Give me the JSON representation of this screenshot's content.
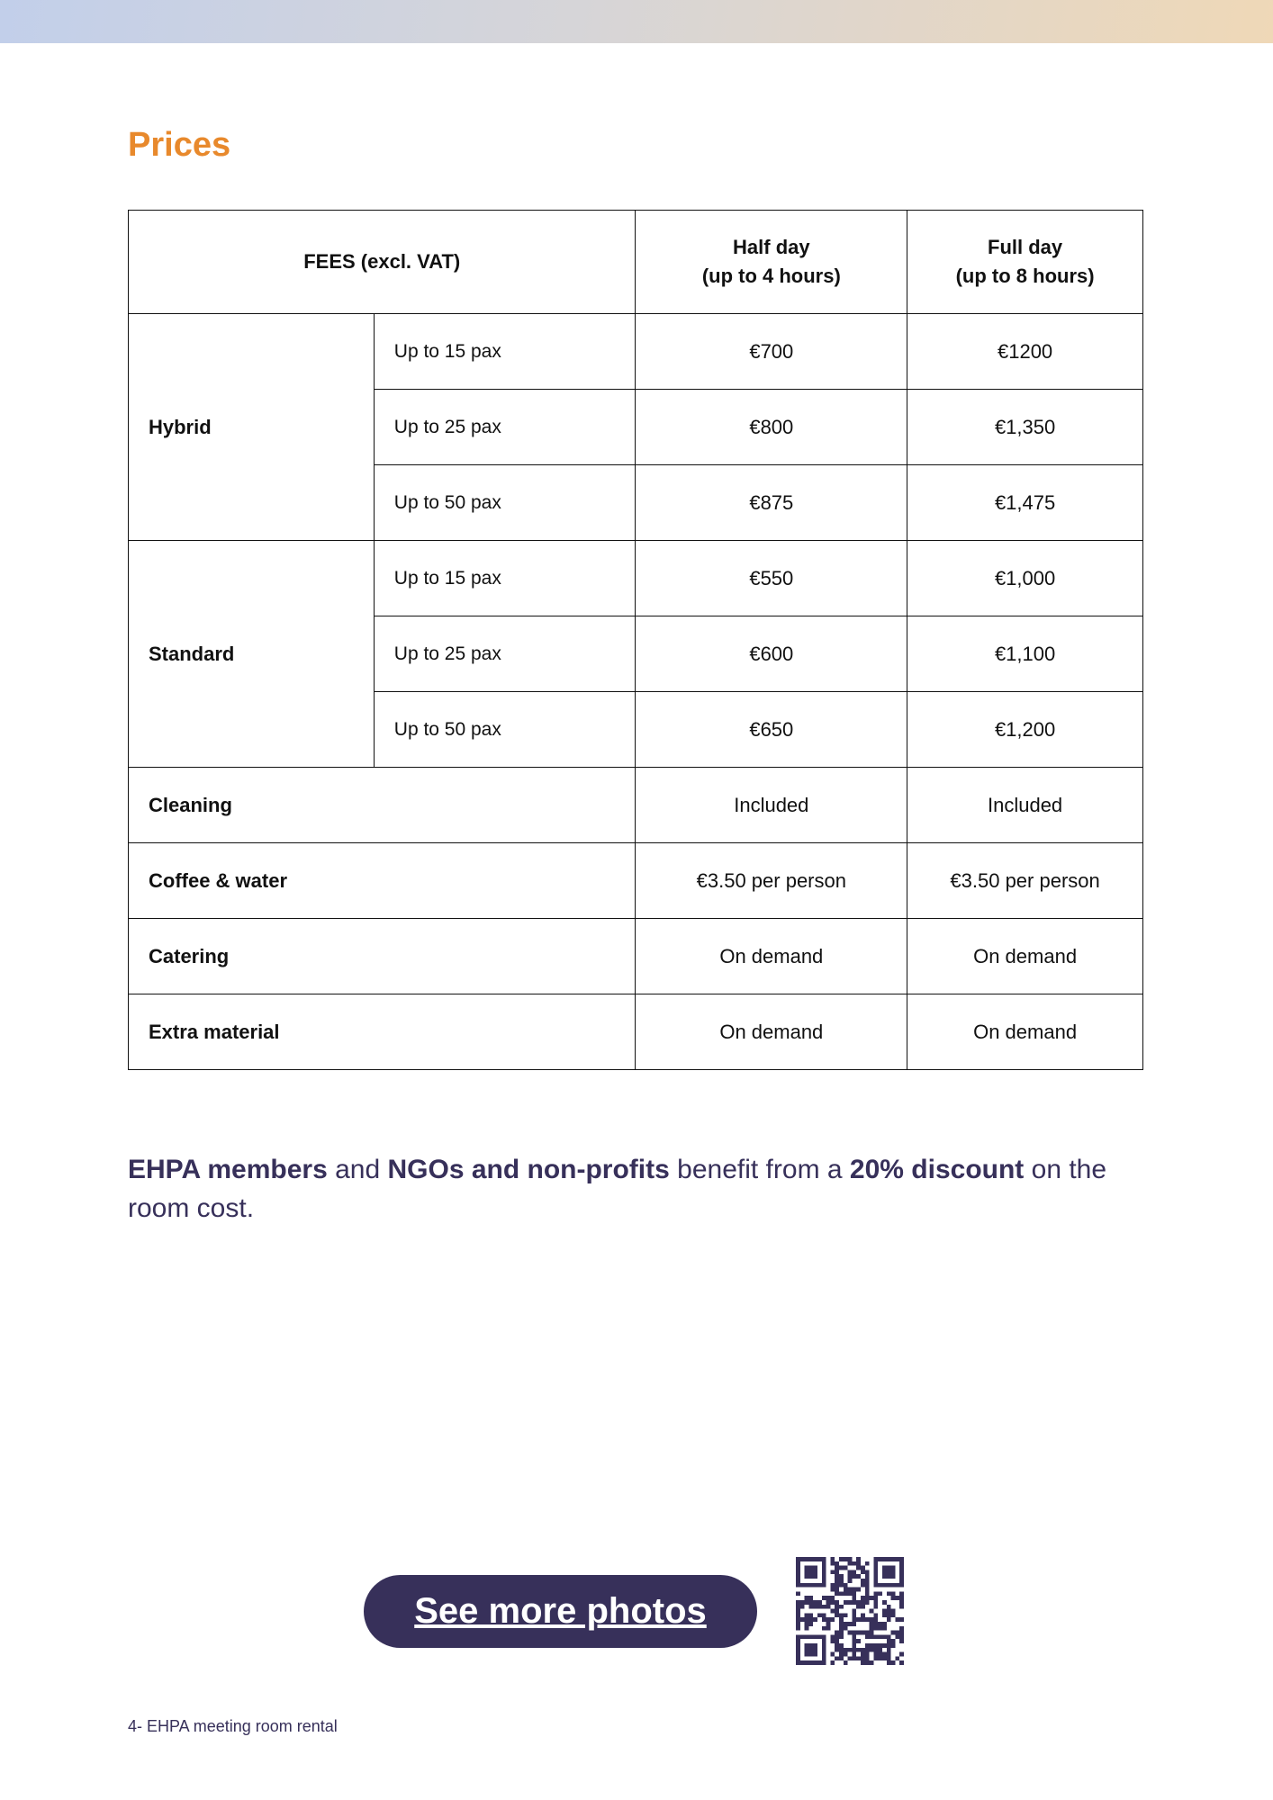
{
  "header": {
    "band_gradient": [
      "#c2cfea",
      "#efd8b7"
    ]
  },
  "title": "Prices",
  "table": {
    "headers": {
      "fees": "FEES (excl. VAT)",
      "half": "Half day\n(up to 4 hours)",
      "half_l1": "Half day",
      "half_l2": "(up to 4 hours)",
      "full_l1": "Full day",
      "full_l2": "(up to 8 hours)"
    },
    "groups": [
      {
        "label": "Hybrid",
        "rows": [
          {
            "pax": "Up to 15 pax",
            "half": "€700",
            "full": "€1200"
          },
          {
            "pax": "Up to 25 pax",
            "half": "€800",
            "full": "€1,350"
          },
          {
            "pax": "Up to 50 pax",
            "half": "€875",
            "full": "€1,475"
          }
        ]
      },
      {
        "label": "Standard",
        "rows": [
          {
            "pax": "Up to 15 pax",
            "half": "€550",
            "full": "€1,000"
          },
          {
            "pax": "Up to 25 pax",
            "half": "€600",
            "full": "€1,100"
          },
          {
            "pax": "Up to 50 pax",
            "half": "€650",
            "full": "€1,200"
          }
        ]
      }
    ],
    "extras": [
      {
        "label": "Cleaning",
        "half": "Included",
        "full": "Included"
      },
      {
        "label": "Coffee & water",
        "half": "€3.50 per person",
        "full": "€3.50 per person"
      },
      {
        "label": "Catering",
        "half": "On demand",
        "full": "On demand"
      },
      {
        "label": "Extra material",
        "half": "On demand",
        "full": "On demand"
      }
    ]
  },
  "discount": {
    "p1": "EHPA members",
    "p2": " and ",
    "p3": "NGOs and non-profits",
    "p4": " benefit from a ",
    "p5": "20% discount",
    "p6": " on the room cost."
  },
  "button": {
    "label": "See more photos",
    "color": "#37305a"
  },
  "qr": {
    "icon": "qr-code-icon"
  },
  "footer": "4- EHPA meeting room rental",
  "accent": "#e8892c"
}
